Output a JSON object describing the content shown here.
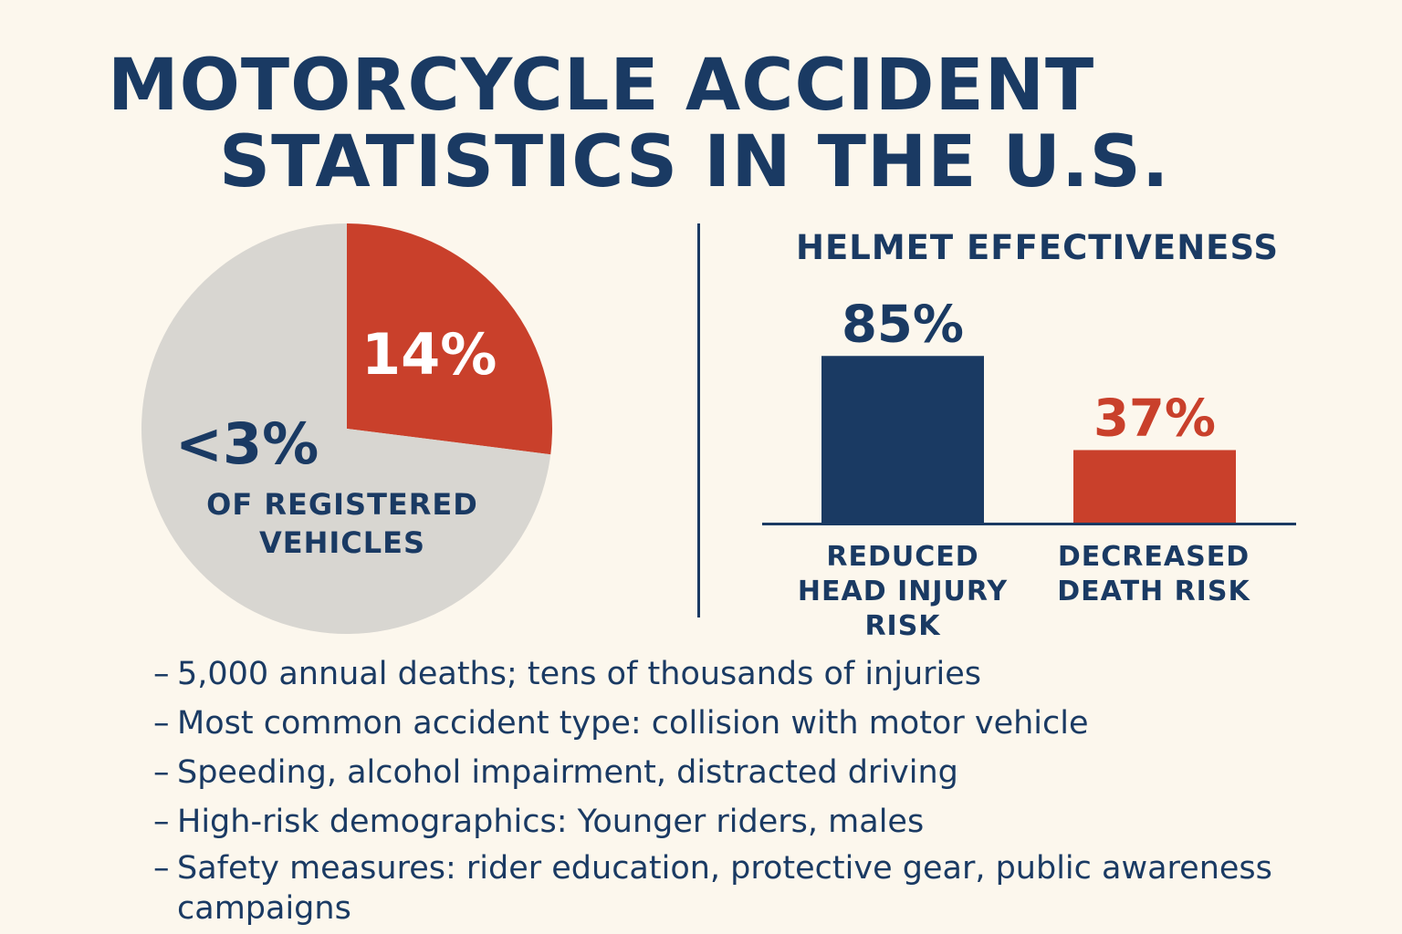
{
  "title": {
    "line1": "MOTORCYCLE ACCIDENT",
    "line2": "STATISTICS IN THE U.S."
  },
  "colors": {
    "navy": "#1a3a63",
    "red": "#c9402b",
    "gray": "#d8d6d1",
    "background": "#fcf7ed"
  },
  "chart_data": [
    {
      "type": "pie",
      "slices": [
        {
          "label": "14%",
          "value": 27,
          "color": "#c9402b"
        },
        {
          "label": "<3%",
          "value": 73,
          "color": "#d8d6d1"
        }
      ],
      "caption": "OF REGISTERED VEHICLES"
    },
    {
      "type": "bar",
      "title": "HELMET EFFECTIVENESS",
      "categories": [
        "REDUCED HEAD INJURY RISK",
        "DECREASED DEATH RISK"
      ],
      "values": [
        85,
        37
      ],
      "value_labels": [
        "85%",
        "37%"
      ],
      "colors": [
        "#1a3a63",
        "#c9402b"
      ],
      "ylim": [
        0,
        100
      ]
    }
  ],
  "bullets": [
    "5,000 annual deaths; tens of thousands of injuries",
    "Most common accident type: collision with motor vehicle",
    "Speeding, alcohol impairment, distracted driving",
    "High-risk demographics: Younger riders, males",
    "Safety measures: rider education, protective gear, public awareness campaigns"
  ]
}
